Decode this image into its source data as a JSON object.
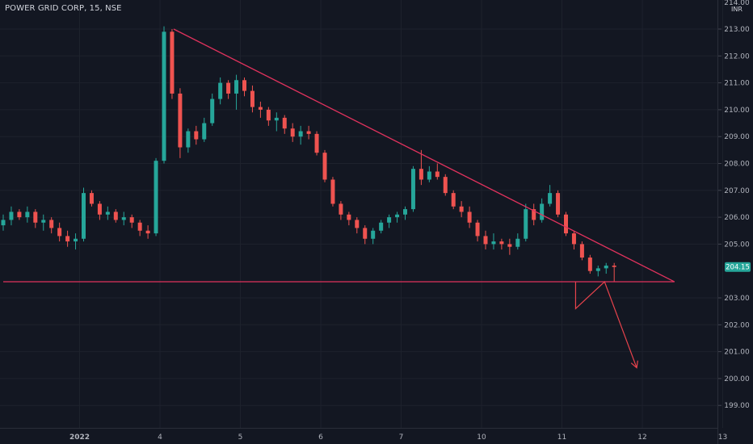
{
  "header": {
    "title": "POWER GRID CORP, 15, NSE",
    "currency": "INR",
    "top_label": "214.00"
  },
  "colors": {
    "background": "#131722",
    "up": "#26a69a",
    "down": "#ef5350",
    "trendline": "#e0325d",
    "arrow": "#e8434c",
    "price_tag": "#26a69a"
  },
  "current_price": {
    "label": "204.15",
    "value": 204.15
  },
  "chart_data": {
    "type": "candlestick",
    "title": "",
    "ylim": [
      198.4,
      214.1
    ],
    "y_ticks": [
      {
        "value": 213,
        "label": "213.00"
      },
      {
        "value": 212,
        "label": "212.00"
      },
      {
        "value": 211,
        "label": "211.00"
      },
      {
        "value": 210,
        "label": "210.00"
      },
      {
        "value": 209,
        "label": "209.00"
      },
      {
        "value": 208,
        "label": "208.00"
      },
      {
        "value": 207,
        "label": "207.00"
      },
      {
        "value": 206,
        "label": "206.00"
      },
      {
        "value": 205,
        "label": "205.00"
      },
      {
        "value": 203,
        "label": "203.00"
      },
      {
        "value": 202,
        "label": "202.00"
      },
      {
        "value": 201,
        "label": "201.00"
      },
      {
        "value": 200,
        "label": "200.00"
      },
      {
        "value": 199,
        "label": "199.00"
      }
    ],
    "x_range": [
      0,
      90
    ],
    "x_ticks": [
      {
        "value": 9.5,
        "label": "2022"
      },
      {
        "value": 19.5,
        "label": "4"
      },
      {
        "value": 29.5,
        "label": "5"
      },
      {
        "value": 39.5,
        "label": "6"
      },
      {
        "value": 49.5,
        "label": "7"
      },
      {
        "value": 59.5,
        "label": "10"
      },
      {
        "value": 69.5,
        "label": "11"
      },
      {
        "value": 79.5,
        "label": "12"
      },
      {
        "value": 89.5,
        "label": "13"
      }
    ],
    "candles": [
      [
        205.7,
        206.1,
        205.5,
        205.9
      ],
      [
        205.9,
        206.4,
        205.7,
        206.2
      ],
      [
        206.2,
        206.3,
        205.9,
        206.0
      ],
      [
        206.0,
        206.4,
        205.8,
        206.2
      ],
      [
        206.2,
        206.3,
        205.6,
        205.8
      ],
      [
        205.8,
        206.1,
        205.5,
        205.9
      ],
      [
        205.9,
        206.0,
        205.4,
        205.6
      ],
      [
        205.6,
        205.8,
        205.1,
        205.3
      ],
      [
        205.3,
        205.5,
        204.9,
        205.1
      ],
      [
        205.1,
        205.4,
        204.8,
        205.2
      ],
      [
        205.2,
        207.1,
        205.1,
        206.9
      ],
      [
        206.9,
        207.0,
        206.4,
        206.5
      ],
      [
        206.5,
        206.6,
        205.9,
        206.1
      ],
      [
        206.1,
        206.4,
        205.9,
        206.2
      ],
      [
        206.2,
        206.3,
        205.8,
        205.9
      ],
      [
        205.9,
        206.2,
        205.7,
        206.0
      ],
      [
        206.0,
        206.1,
        205.6,
        205.8
      ],
      [
        205.8,
        205.9,
        205.3,
        205.5
      ],
      [
        205.5,
        205.7,
        205.2,
        205.4
      ],
      [
        205.4,
        208.2,
        205.3,
        208.1
      ],
      [
        208.1,
        213.1,
        208.0,
        212.9
      ],
      [
        212.9,
        213.0,
        210.4,
        210.6
      ],
      [
        210.6,
        210.8,
        208.2,
        208.6
      ],
      [
        208.6,
        209.3,
        208.4,
        209.2
      ],
      [
        209.2,
        209.4,
        208.7,
        208.9
      ],
      [
        208.9,
        209.7,
        208.8,
        209.5
      ],
      [
        209.5,
        210.6,
        209.4,
        210.4
      ],
      [
        210.4,
        211.2,
        210.2,
        211.0
      ],
      [
        211.0,
        211.1,
        210.4,
        210.6
      ],
      [
        210.6,
        211.3,
        210.0,
        211.1
      ],
      [
        211.1,
        211.2,
        210.5,
        210.7
      ],
      [
        210.7,
        210.9,
        209.9,
        210.1
      ],
      [
        210.1,
        210.3,
        209.7,
        210.0
      ],
      [
        210.0,
        210.1,
        209.4,
        209.6
      ],
      [
        209.6,
        209.9,
        209.2,
        209.7
      ],
      [
        209.7,
        209.8,
        209.1,
        209.3
      ],
      [
        209.3,
        209.5,
        208.8,
        209.0
      ],
      [
        209.0,
        209.4,
        208.7,
        209.2
      ],
      [
        209.2,
        209.4,
        208.9,
        209.1
      ],
      [
        209.1,
        209.2,
        208.3,
        208.4
      ],
      [
        208.4,
        208.5,
        207.3,
        207.4
      ],
      [
        207.4,
        207.5,
        206.4,
        206.5
      ],
      [
        206.5,
        206.6,
        205.9,
        206.1
      ],
      [
        206.1,
        206.2,
        205.7,
        205.9
      ],
      [
        205.9,
        206.0,
        205.4,
        205.6
      ],
      [
        205.6,
        205.7,
        205.0,
        205.2
      ],
      [
        205.2,
        205.6,
        205.0,
        205.5
      ],
      [
        205.5,
        205.9,
        205.4,
        205.8
      ],
      [
        205.8,
        206.1,
        205.6,
        206.0
      ],
      [
        206.0,
        206.2,
        205.8,
        206.1
      ],
      [
        206.1,
        206.4,
        205.9,
        206.3
      ],
      [
        206.3,
        207.9,
        206.2,
        207.8
      ],
      [
        207.8,
        208.5,
        207.2,
        207.4
      ],
      [
        207.4,
        207.9,
        207.3,
        207.7
      ],
      [
        207.7,
        208.0,
        207.4,
        207.5
      ],
      [
        207.5,
        207.6,
        206.8,
        206.9
      ],
      [
        206.9,
        207.0,
        206.3,
        206.4
      ],
      [
        206.4,
        206.6,
        206.0,
        206.2
      ],
      [
        206.2,
        206.4,
        205.6,
        205.8
      ],
      [
        205.8,
        205.9,
        205.1,
        205.3
      ],
      [
        205.3,
        205.5,
        204.8,
        205.0
      ],
      [
        205.0,
        205.4,
        204.8,
        205.1
      ],
      [
        205.1,
        205.2,
        204.8,
        205.0
      ],
      [
        205.0,
        205.2,
        204.6,
        204.9
      ],
      [
        204.9,
        205.4,
        204.8,
        205.2
      ],
      [
        205.2,
        206.5,
        205.1,
        206.3
      ],
      [
        206.3,
        206.5,
        205.7,
        205.9
      ],
      [
        205.9,
        206.7,
        205.8,
        206.5
      ],
      [
        206.5,
        207.2,
        206.4,
        206.9
      ],
      [
        206.9,
        207.0,
        206.0,
        206.1
      ],
      [
        206.1,
        206.2,
        205.3,
        205.4
      ],
      [
        205.4,
        205.5,
        204.8,
        205.0
      ],
      [
        205.0,
        205.1,
        204.4,
        204.5
      ],
      [
        204.5,
        204.6,
        203.9,
        204.0
      ],
      [
        204.0,
        204.2,
        203.8,
        204.1
      ],
      [
        204.1,
        204.3,
        203.9,
        204.2
      ],
      [
        204.2,
        204.3,
        203.6,
        204.15
      ]
    ],
    "trendlines": [
      {
        "from": [
          21.2,
          213.0
        ],
        "to": [
          83.5,
          203.6
        ]
      },
      {
        "from": [
          0.0,
          203.6
        ],
        "to": [
          83.5,
          203.6
        ]
      }
    ],
    "projection_path": [
      [
        71.2,
        203.6
      ],
      [
        71.2,
        202.6
      ],
      [
        74.8,
        203.6
      ],
      [
        78.8,
        200.4
      ]
    ]
  }
}
